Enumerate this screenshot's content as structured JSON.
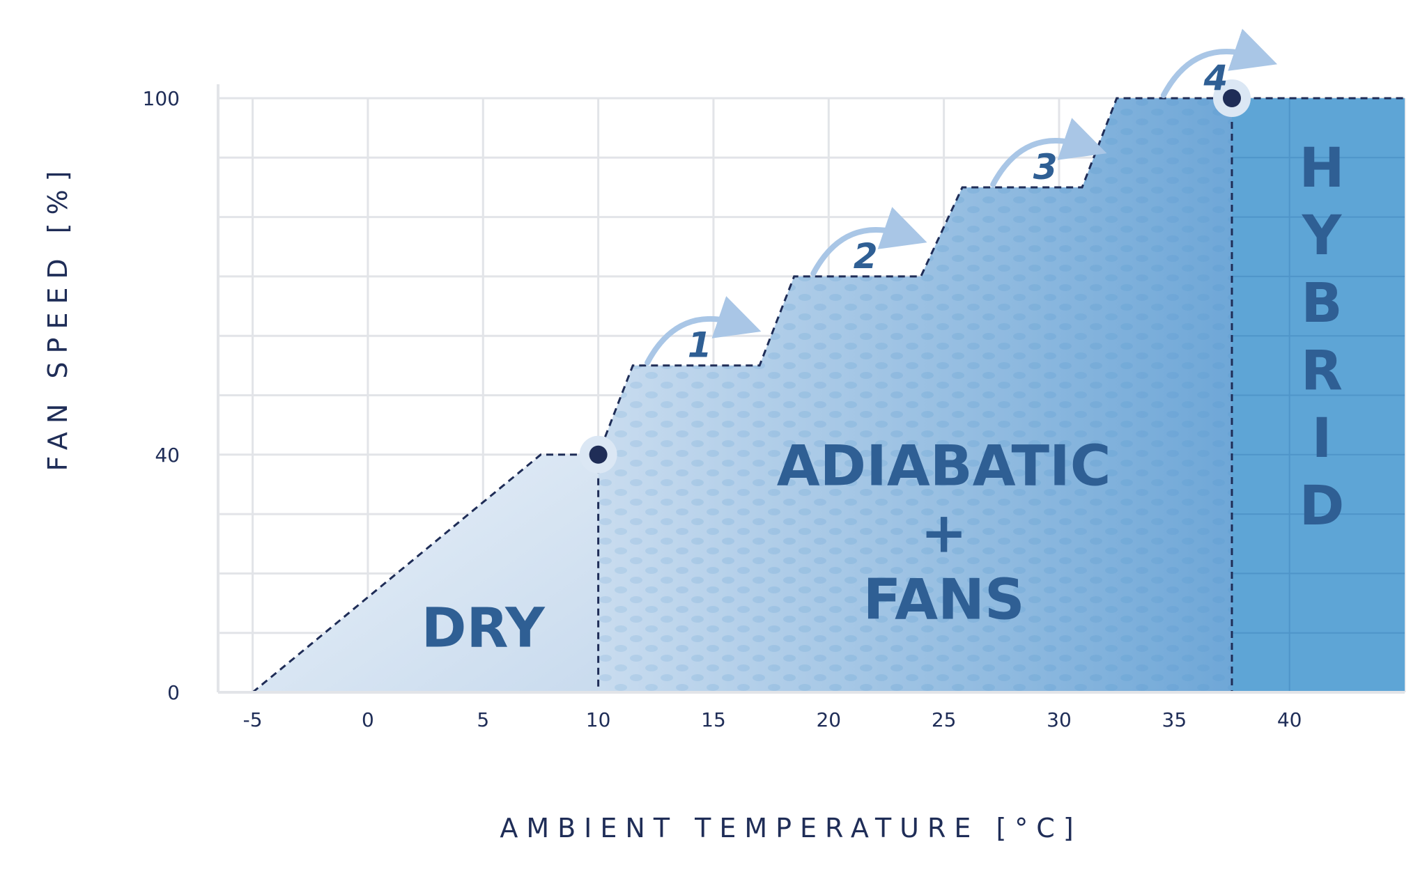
{
  "chart_data": {
    "type": "area",
    "xlabel": "AMBIENT TEMPERATURE [°C]",
    "ylabel": "FAN SPEED [%]",
    "xlim": [
      -6.5,
      45
    ],
    "ylim": [
      0,
      100
    ],
    "x_ticks": [
      -5,
      0,
      5,
      10,
      15,
      20,
      25,
      30,
      35,
      40
    ],
    "y_ticks": [
      0,
      40,
      100
    ],
    "grid": true,
    "curve": [
      {
        "x": -5,
        "y": 0
      },
      {
        "x": 7.5,
        "y": 40
      },
      {
        "x": 10,
        "y": 40
      },
      {
        "x": 11.5,
        "y": 55
      },
      {
        "x": 17,
        "y": 55
      },
      {
        "x": 18.5,
        "y": 70
      },
      {
        "x": 24,
        "y": 70
      },
      {
        "x": 25.8,
        "y": 85
      },
      {
        "x": 31,
        "y": 85
      },
      {
        "x": 32.5,
        "y": 100
      },
      {
        "x": 45,
        "y": 100
      }
    ],
    "transition_points": [
      {
        "x": 10,
        "y": 40
      },
      {
        "x": 37.5,
        "y": 100
      }
    ],
    "regions": [
      {
        "lines": [
          "DRY"
        ],
        "x_from": -5,
        "x_to": 10,
        "label_x": 5,
        "label_y": 11
      },
      {
        "lines": [
          "ADIABATIC",
          "+",
          "FANS"
        ],
        "x_from": 10,
        "x_to": 37.5,
        "label_x": 25,
        "label_y": 27
      },
      {
        "lines": [
          "H",
          "Y",
          "B",
          "R",
          "I",
          "D"
        ],
        "x_from": 37.5,
        "x_to": 45,
        "label_x": 41.4,
        "label_y": 60
      }
    ],
    "steps": [
      {
        "label": "1",
        "x": 14.4,
        "y": 59
      },
      {
        "label": "2",
        "x": 21.6,
        "y": 74
      },
      {
        "label": "3",
        "x": 29.4,
        "y": 89
      },
      {
        "label": "4",
        "x": 36.8,
        "y": 104
      }
    ],
    "colors": {
      "dry_fill": "#dae6f2",
      "adiabatic_light": "#c7daee",
      "adiabatic_dark": "#6ea6d6",
      "hybrid_fill": "#5ea5d6",
      "line": "#1f2d57",
      "label": "#2f5f94",
      "grid": "#e2e4e8",
      "arrow": "#a9c6e6"
    }
  }
}
